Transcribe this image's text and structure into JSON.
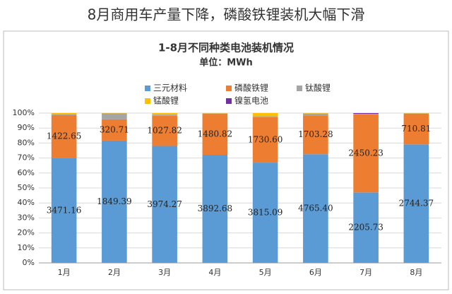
{
  "chart_data": {
    "type": "stacked_percent_bar",
    "title": "8月商用车产量下降，磷酸铁锂装机大幅下滑",
    "subtitle": "1-8月不同种类电池装机情况",
    "unit_label": "单位：MWh",
    "categories": [
      "1月",
      "2月",
      "3月",
      "4月",
      "5月",
      "6月",
      "7月",
      "8月"
    ],
    "series": [
      {
        "name": "三元材料",
        "color": "#5b9bd5",
        "values": [
          3471.16,
          1849.39,
          3974.27,
          3892.68,
          3815.09,
          4765.4,
          2205.73,
          2744.37
        ],
        "value_labels": [
          "3471.16",
          "1849.39",
          "3974.27",
          "3892.68",
          "3815.09",
          "4765.40",
          "2205.73",
          "2744.37"
        ]
      },
      {
        "name": "磷酸铁锂",
        "color": "#ed7d31",
        "values": [
          1422.65,
          320.71,
          1027.82,
          1480.82,
          1730.6,
          1703.28,
          2450.23,
          710.81
        ],
        "value_labels": [
          "1422.65",
          "320.71",
          "1027.82",
          "1480.82",
          "1730.60",
          "1703.28",
          "2450.23",
          "710.81"
        ]
      },
      {
        "name": "钛酸锂",
        "color": "#a5a5a5",
        "values": [
          30,
          90,
          40,
          10,
          35,
          80,
          5,
          8
        ]
      },
      {
        "name": "锰酸锂",
        "color": "#ffc000",
        "values": [
          35,
          5,
          50,
          10,
          120,
          20,
          5,
          7
        ]
      },
      {
        "name": "镍氢电池",
        "color": "#7030a0",
        "values": [
          0,
          0,
          0,
          0,
          0,
          0,
          25,
          0
        ]
      }
    ],
    "ylim": [
      0,
      100
    ],
    "yticks": [
      {
        "value": 0,
        "label": "0%"
      },
      {
        "value": 10,
        "label": "10%"
      },
      {
        "value": 20,
        "label": "20%"
      },
      {
        "value": 30,
        "label": "30%"
      },
      {
        "value": 40,
        "label": "40%"
      },
      {
        "value": 50,
        "label": "50%"
      },
      {
        "value": 60,
        "label": "60%"
      },
      {
        "value": 70,
        "label": "70%"
      },
      {
        "value": 80,
        "label": "80%"
      },
      {
        "value": 90,
        "label": "90%"
      },
      {
        "value": 100,
        "label": "100%"
      }
    ],
    "grid": true,
    "legend": "top"
  }
}
